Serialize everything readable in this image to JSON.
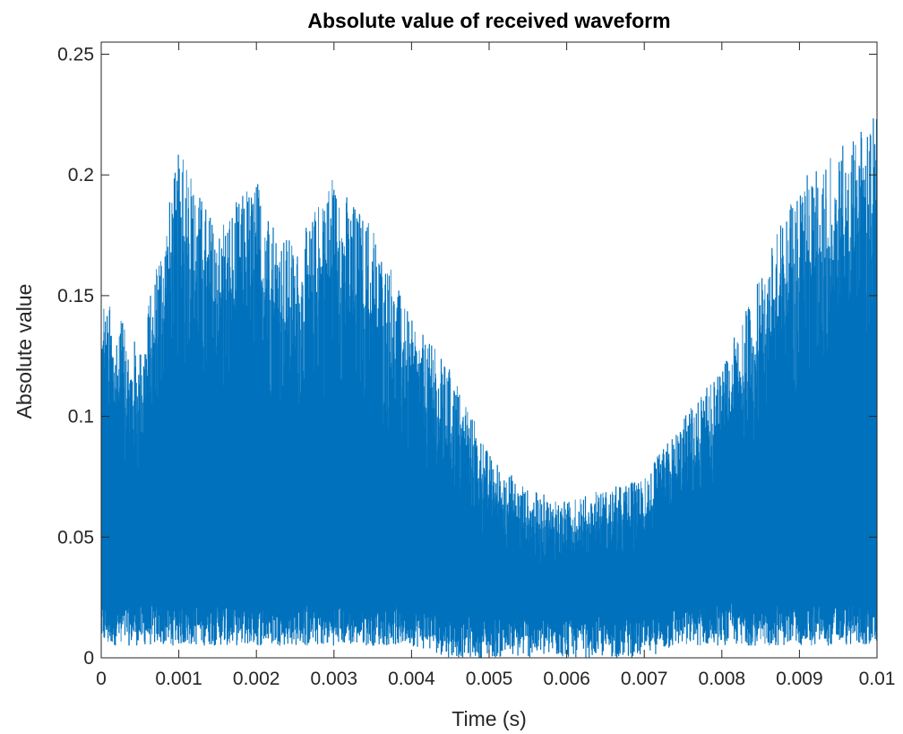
{
  "chart_data": {
    "type": "line",
    "title": "Absolute value of received waveform",
    "xlabel": "Time (s)",
    "ylabel": "Absolute value",
    "xlim": [
      0,
      0.01
    ],
    "ylim": [
      0,
      0.255
    ],
    "x_ticks": [
      0,
      0.001,
      0.002,
      0.003,
      0.004,
      0.005,
      0.006,
      0.007,
      0.008,
      0.009,
      0.01
    ],
    "x_tick_labels": [
      "0",
      "0.001",
      "0.002",
      "0.003",
      "0.004",
      "0.005",
      "0.006",
      "0.007",
      "0.008",
      "0.009",
      "0.01"
    ],
    "y_ticks": [
      0,
      0.05,
      0.1,
      0.15,
      0.2,
      0.25
    ],
    "y_tick_labels": [
      "0",
      "0.05",
      "0.1",
      "0.15",
      "0.2",
      "0.25"
    ],
    "grid": false,
    "legend": "none",
    "line_color": "#0072BD",
    "series": [
      {
        "x": [
          0,
          0.0005,
          0.001,
          0.0015,
          0.002,
          0.0025,
          0.003,
          0.0035,
          0.004,
          0.0045,
          0.005,
          0.0055,
          0.006,
          0.0065,
          0.007,
          0.0075,
          0.008,
          0.0085,
          0.009,
          0.0095,
          0.01
        ],
        "upper_envelope": [
          0.15,
          0.13,
          0.21,
          0.18,
          0.2,
          0.17,
          0.2,
          0.18,
          0.14,
          0.12,
          0.085,
          0.07,
          0.065,
          0.07,
          0.075,
          0.1,
          0.12,
          0.16,
          0.2,
          0.21,
          0.23
        ],
        "lower_envelope": [
          0.005,
          0.005,
          0.005,
          0.005,
          0.005,
          0.005,
          0.005,
          0.005,
          0.005,
          0.0,
          0.0,
          0.0,
          0.0,
          0.0,
          0.0,
          0.005,
          0.005,
          0.005,
          0.005,
          0.005,
          0.005
        ]
      }
    ]
  }
}
